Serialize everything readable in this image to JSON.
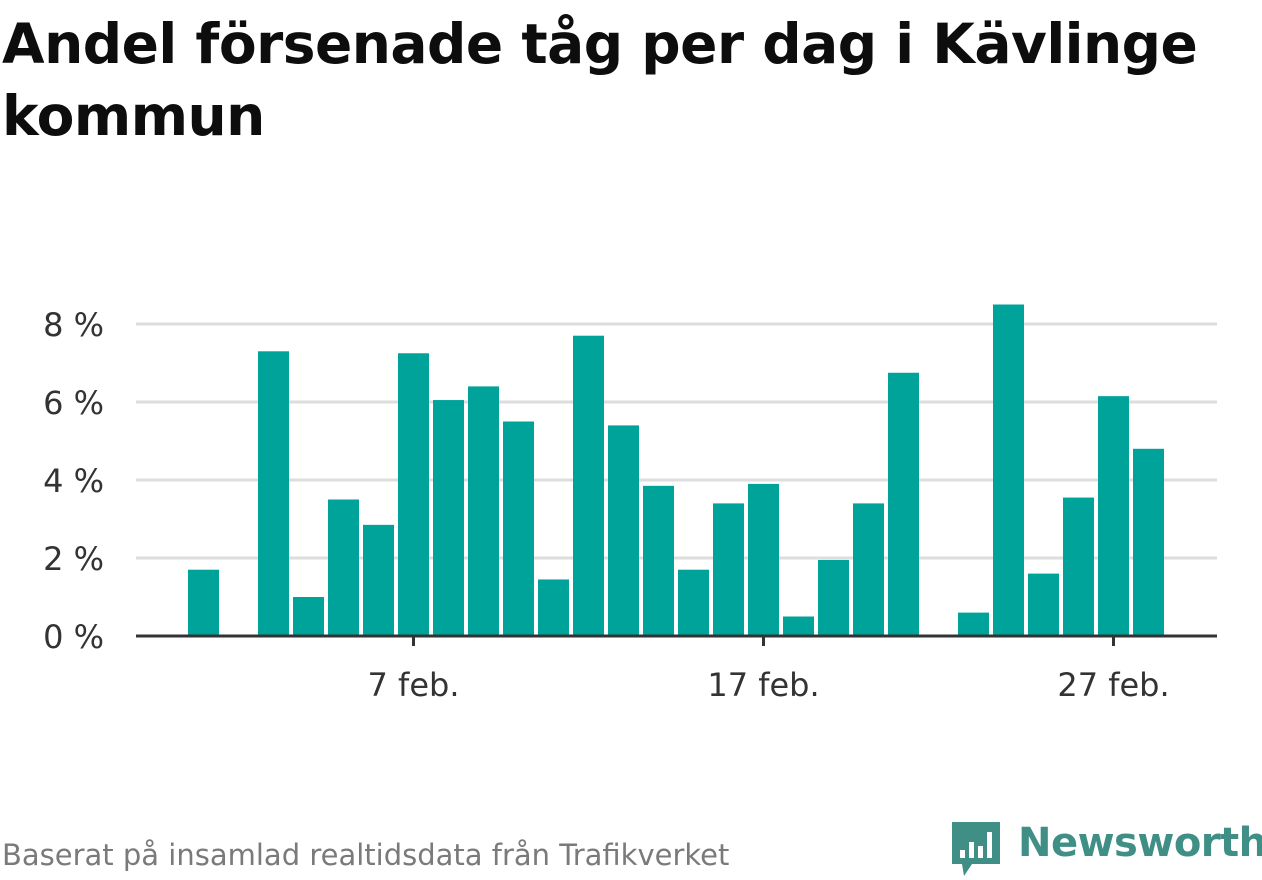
{
  "title": "Andel försenade tåg per dag i Kävlinge kommun",
  "footer": {
    "source": "Baserat på insamlad realtidsdata från Trafikverket"
  },
  "brand": {
    "name": "Newsworthy",
    "logo_icon": "newsworthy-logo-icon",
    "color": "#3f8f86"
  },
  "chart_data": {
    "type": "bar",
    "title": "Andel försenade tåg per dag i Kävlinge kommun",
    "xlabel": "",
    "ylabel": "",
    "bar_color": "#00a39a",
    "ylim": [
      0,
      8.6
    ],
    "grid": true,
    "y_ticks": [
      0,
      2,
      4,
      6,
      8
    ],
    "y_tick_labels": [
      "0 %",
      "2 %",
      "4 %",
      "6 %",
      "8 %"
    ],
    "x_tick_labels": [
      {
        "category": "2025-02-07",
        "label": "7 feb."
      },
      {
        "category": "2025-02-17",
        "label": "17 feb."
      },
      {
        "category": "2025-02-27",
        "label": "27 feb."
      }
    ],
    "categories": [
      "2025-02-01",
      "2025-02-02",
      "2025-02-03",
      "2025-02-04",
      "2025-02-05",
      "2025-02-06",
      "2025-02-07",
      "2025-02-08",
      "2025-02-09",
      "2025-02-10",
      "2025-02-11",
      "2025-02-12",
      "2025-02-13",
      "2025-02-14",
      "2025-02-15",
      "2025-02-16",
      "2025-02-17",
      "2025-02-18",
      "2025-02-19",
      "2025-02-20",
      "2025-02-21",
      "2025-02-22",
      "2025-02-23",
      "2025-02-24",
      "2025-02-25",
      "2025-02-26",
      "2025-02-27",
      "2025-02-28"
    ],
    "values": [
      1.7,
      null,
      7.3,
      1.0,
      3.5,
      2.85,
      7.25,
      6.05,
      6.4,
      5.5,
      1.45,
      7.7,
      5.4,
      3.85,
      1.7,
      3.4,
      3.9,
      0.5,
      1.95,
      3.4,
      6.75,
      null,
      0.6,
      8.5,
      1.6,
      3.55,
      6.15,
      4.8
    ]
  }
}
